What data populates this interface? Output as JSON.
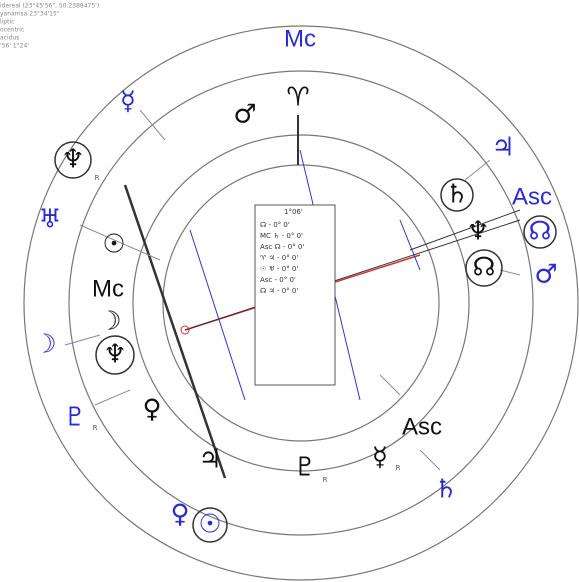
{
  "info": [
    "idereal (23°45'56\", 50.2388475')",
    "yanamsa 23°34'15\"",
    "liptic",
    "ocentric",
    "acidus",
    "'56'   1°24'"
  ],
  "outer": [
    {
      "label": "Mc"
    },
    {
      "label": "☿"
    },
    {
      "label": "♅"
    },
    {
      "label": "☽"
    },
    {
      "label": "♇",
      "retro": "R"
    },
    {
      "label": "♃"
    },
    {
      "label": "Asc"
    },
    {
      "label": "☊"
    },
    {
      "label": "♂"
    },
    {
      "label": "♄"
    },
    {
      "label": "♀"
    },
    {
      "label": "☉"
    }
  ],
  "inner": [
    {
      "label": "♈"
    },
    {
      "label": "♂"
    },
    {
      "label": "♆",
      "retro": "R"
    },
    {
      "label": "☉"
    },
    {
      "label": "Mc"
    },
    {
      "label": "☽"
    },
    {
      "label": "♆"
    },
    {
      "label": "♀"
    },
    {
      "label": "♃"
    },
    {
      "label": "♇",
      "retro": "R"
    },
    {
      "label": "☿",
      "retro": "R"
    },
    {
      "label": "Asc"
    },
    {
      "label": "♄"
    },
    {
      "label": "♆"
    },
    {
      "label": "☊"
    }
  ],
  "box": {
    "title": "1°06'",
    "rows": [
      "☊  - 0° 0'",
      "MC ♄ - 0° 0'",
      "Asc ☊ - 0° 0'",
      "♈ ♃ - 0° 0'",
      "☉ ♅ - 0° 0'",
      "Asc  - 0° 0'",
      "☊ ♃ - 0° 0'"
    ]
  }
}
